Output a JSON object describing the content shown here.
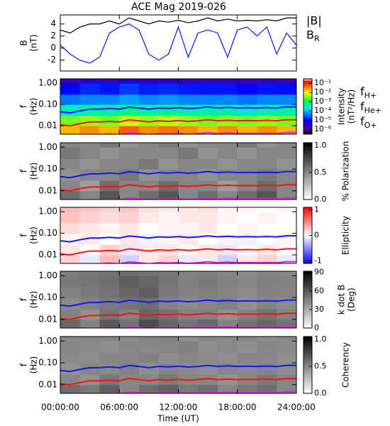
{
  "chart_data": [
    {
      "type": "line",
      "title": "ACE Mag 2019-026",
      "ylabel": [
        "B",
        "(nT)"
      ],
      "xlim": [
        0,
        24
      ],
      "x": [
        0,
        1,
        2,
        3,
        4,
        5,
        6,
        7,
        8,
        9,
        10,
        11,
        12,
        13,
        14,
        15,
        16,
        17,
        18,
        19,
        20,
        21,
        22,
        23,
        24
      ],
      "ylim": [
        -3.8,
        5.5
      ],
      "yticks": [
        -2,
        0,
        2,
        4
      ],
      "series": [
        {
          "name": "|B|",
          "color": "#000000",
          "values": [
            3.0,
            2.5,
            3.5,
            4.0,
            4.0,
            4.5,
            4.0,
            5.0,
            4.5,
            4.0,
            4.5,
            4.3,
            4.6,
            4.2,
            4.5,
            5.0,
            4.5,
            4.8,
            4.5,
            4.6,
            4.5,
            4.7,
            4.5,
            5.0,
            5.0
          ]
        },
        {
          "name": "B",
          "subscript": "R",
          "color": "#1010ff",
          "values": [
            0.5,
            -1.0,
            -2.0,
            -2.5,
            -1.5,
            2.5,
            3.5,
            4.0,
            3.0,
            -1.0,
            -2.0,
            -1.0,
            3.5,
            -1.5,
            2.5,
            3.0,
            2.5,
            -1.5,
            3.0,
            3.5,
            2.0,
            3.5,
            -1.0,
            2.5,
            0.5
          ]
        }
      ]
    },
    {
      "type": "heatmap",
      "ylabel": [
        "f",
        "(Hz)"
      ],
      "ylog": true,
      "ylim": [
        0.004,
        1.6
      ],
      "yticks": [
        {
          "value": 1,
          "label": "1.00"
        },
        {
          "value": 0.1,
          "label": "0.10"
        },
        {
          "value": 0.01,
          "label": "0.01"
        }
      ],
      "x_bins": [
        0,
        2,
        4,
        6,
        8,
        10,
        12,
        14,
        16,
        18,
        20,
        22,
        24
      ],
      "y_bins": [
        0.004,
        0.01,
        0.03,
        0.1,
        0.3,
        1,
        1.6
      ],
      "colormap": "rainbow",
      "zlog": true,
      "zlim": [
        3e-07,
        0.3
      ],
      "zticks": [
        {
          "value": 0.1,
          "label": "10⁻¹"
        },
        {
          "value": 0.01,
          "label": "10⁻²"
        },
        {
          "value": 0.001,
          "label": "10⁻³"
        },
        {
          "value": 0.0001,
          "label": "10⁻⁴"
        },
        {
          "value": 1e-05,
          "label": "10⁻⁵"
        },
        {
          "value": 1e-06,
          "label": "10⁻⁶"
        }
      ],
      "zlabel": [
        "Intensity",
        "(nT²/Hz)"
      ],
      "z": [
        [
          0.02,
          0.03,
          0.02,
          0.05,
          0.03,
          0.04,
          0.03,
          0.02,
          0.03,
          0.02,
          0.03,
          0.02
        ],
        [
          0.003,
          0.004,
          0.003,
          0.006,
          0.004,
          0.005,
          0.004,
          0.003,
          0.004,
          0.003,
          0.004,
          0.003
        ],
        [
          0.0003,
          0.0004,
          0.0004,
          0.0006,
          0.0004,
          0.0005,
          0.0004,
          0.0004,
          0.0004,
          0.0003,
          0.0004,
          0.0004
        ],
        [
          4e-05,
          5e-05,
          5e-05,
          7e-05,
          5e-05,
          6e-05,
          5e-05,
          5e-05,
          5e-05,
          4e-05,
          5e-05,
          5e-05
        ],
        [
          1e-05,
          1.5e-05,
          1.2e-05,
          2e-05,
          1.3e-05,
          1.5e-05,
          1.3e-05,
          1.2e-05,
          1.2e-05,
          1e-05,
          1.2e-05,
          1.1e-05
        ],
        [
          2e-06,
          3e-06,
          2.5e-06,
          4e-06,
          3e-06,
          3e-06,
          2.5e-06,
          2.5e-06,
          2.5e-06,
          2e-06,
          2.5e-06,
          2e-06
        ]
      ],
      "series": [
        {
          "name": "f",
          "subscript": "H+",
          "color": "#1515ff",
          "values": [
            0.045,
            0.04,
            0.05,
            0.06,
            0.06,
            0.065,
            0.06,
            0.075,
            0.068,
            0.06,
            0.068,
            0.065,
            0.07,
            0.064,
            0.068,
            0.076,
            0.068,
            0.073,
            0.068,
            0.07,
            0.068,
            0.071,
            0.068,
            0.076,
            0.076
          ]
        },
        {
          "name": "f",
          "subscript": "He+",
          "color": "#ff1010",
          "values": [
            0.011,
            0.01,
            0.0125,
            0.015,
            0.015,
            0.016,
            0.015,
            0.019,
            0.017,
            0.015,
            0.017,
            0.016,
            0.0175,
            0.016,
            0.017,
            0.019,
            0.017,
            0.018,
            0.017,
            0.0175,
            0.017,
            0.018,
            0.017,
            0.019,
            0.019
          ]
        },
        {
          "name": "f",
          "subscript": "O+",
          "color": "#e020e0",
          "values": [
            0.0028,
            0.0025,
            0.0031,
            0.0038,
            0.0038,
            0.0041,
            0.0038,
            0.0047,
            0.0043,
            0.0038,
            0.0043,
            0.0041,
            0.0044,
            0.004,
            0.0043,
            0.0048,
            0.0043,
            0.0046,
            0.0043,
            0.0044,
            0.0043,
            0.0044,
            0.0043,
            0.0048,
            0.0048
          ]
        }
      ]
    },
    {
      "type": "heatmap",
      "ylabel": [
        "f",
        "(Hz)"
      ],
      "ylog": true,
      "ylim": [
        0.004,
        1.6
      ],
      "yticks": [
        {
          "value": 1,
          "label": "1.00"
        },
        {
          "value": 0.1,
          "label": "0.10"
        },
        {
          "value": 0.01,
          "label": "0.01"
        }
      ],
      "x_bins": [
        0,
        2,
        4,
        6,
        8,
        10,
        12,
        14,
        16,
        18,
        20,
        22,
        24
      ],
      "y_bins": [
        0.004,
        0.01,
        0.03,
        0.1,
        0.3,
        1,
        1.6
      ],
      "colormap": "gray",
      "zlim": [
        0,
        1.05
      ],
      "zticks": [
        {
          "value": 1,
          "label": "1.0"
        },
        {
          "value": 0.5,
          "label": "0.5"
        },
        {
          "value": 0,
          "label": "0.0"
        }
      ],
      "zlabel": [
        "% Polarization"
      ],
      "z": [
        [
          0.6,
          0.5,
          0.7,
          0.5,
          0.6,
          0.7,
          0.5,
          0.6,
          0.5,
          0.6,
          0.7,
          0.5
        ],
        [
          0.5,
          0.4,
          0.6,
          0.5,
          0.5,
          0.6,
          0.5,
          0.5,
          0.4,
          0.5,
          0.6,
          0.5
        ],
        [
          0.45,
          0.5,
          0.5,
          0.55,
          0.45,
          0.5,
          0.5,
          0.45,
          0.5,
          0.5,
          0.55,
          0.5
        ],
        [
          0.5,
          0.45,
          0.5,
          0.5,
          0.55,
          0.45,
          0.5,
          0.5,
          0.45,
          0.5,
          0.5,
          0.45
        ],
        [
          0.55,
          0.5,
          0.45,
          0.5,
          0.5,
          0.5,
          0.55,
          0.45,
          0.5,
          0.45,
          0.5,
          0.5
        ],
        [
          0.5,
          0.5,
          0.55,
          0.45,
          0.5,
          0.55,
          0.45,
          0.5,
          0.5,
          0.55,
          0.45,
          0.5
        ]
      ]
    },
    {
      "type": "heatmap",
      "ylabel": [
        "f",
        "(Hz)"
      ],
      "ylog": true,
      "ylim": [
        0.004,
        1.6
      ],
      "yticks": [
        {
          "value": 1,
          "label": "1.00"
        },
        {
          "value": 0.1,
          "label": "0.10"
        },
        {
          "value": 0.01,
          "label": "0.01"
        }
      ],
      "x_bins": [
        0,
        2,
        4,
        6,
        8,
        10,
        12,
        14,
        16,
        18,
        20,
        22,
        24
      ],
      "y_bins": [
        0.004,
        0.01,
        0.03,
        0.1,
        0.3,
        1,
        1.6
      ],
      "colormap": "bwr",
      "zlim": [
        -1.1,
        1.1
      ],
      "zticks": [
        1,
        0,
        -1
      ],
      "zlabel": [
        "Ellipticity"
      ],
      "z": [
        [
          0.2,
          -0.1,
          0.3,
          -0.2,
          0.1,
          0.2,
          -0.1,
          0.1,
          -0.2,
          0.1,
          0.2,
          -0.1
        ],
        [
          0.1,
          0.0,
          0.2,
          -0.1,
          0.1,
          0.1,
          0.0,
          0.1,
          -0.1,
          0.0,
          0.1,
          0.0
        ],
        [
          0.05,
          0.1,
          0.0,
          0.1,
          -0.05,
          0.05,
          0.1,
          0.0,
          0.05,
          -0.05,
          0.0,
          0.05
        ],
        [
          0.15,
          0.1,
          0.05,
          0.1,
          0.0,
          0.05,
          0.05,
          0.1,
          0.0,
          0.05,
          0.0,
          0.0
        ],
        [
          0.25,
          0.2,
          0.15,
          0.2,
          0.1,
          0.05,
          0.1,
          0.1,
          0.05,
          0.0,
          0.05,
          0.0
        ],
        [
          0.3,
          0.25,
          0.2,
          0.25,
          0.15,
          0.1,
          0.1,
          0.15,
          0.05,
          0.05,
          0.0,
          0.05
        ]
      ]
    },
    {
      "type": "heatmap",
      "ylabel": [
        "f",
        "(Hz)"
      ],
      "ylog": true,
      "ylim": [
        0.004,
        1.6
      ],
      "yticks": [
        {
          "value": 1,
          "label": "1.00"
        },
        {
          "value": 0.1,
          "label": "0.10"
        },
        {
          "value": 0.01,
          "label": "0.01"
        }
      ],
      "x_bins": [
        0,
        2,
        4,
        6,
        8,
        10,
        12,
        14,
        16,
        18,
        20,
        22,
        24
      ],
      "y_bins": [
        0.004,
        0.01,
        0.03,
        0.1,
        0.3,
        1,
        1.6
      ],
      "colormap": "gray",
      "zlim": [
        0,
        92
      ],
      "zticks": [
        90,
        60,
        30,
        0
      ],
      "zlabel": [
        "k dot B",
        "(Deg)"
      ],
      "z": [
        [
          55,
          45,
          60,
          50,
          65,
          55,
          50,
          55,
          45,
          50,
          55,
          50
        ],
        [
          45,
          40,
          50,
          45,
          55,
          50,
          45,
          45,
          40,
          45,
          50,
          45
        ],
        [
          42,
          45,
          48,
          50,
          52,
          45,
          42,
          44,
          46,
          40,
          44,
          42
        ],
        [
          45,
          48,
          50,
          55,
          58,
          48,
          45,
          46,
          44,
          42,
          45,
          44
        ],
        [
          48,
          50,
          52,
          58,
          55,
          50,
          46,
          48,
          45,
          44,
          46,
          45
        ],
        [
          46,
          48,
          50,
          52,
          50,
          48,
          45,
          46,
          44,
          42,
          44,
          43
        ]
      ]
    },
    {
      "type": "heatmap",
      "ylabel": [
        "f",
        "(Hz)"
      ],
      "ylog": true,
      "ylim": [
        0.004,
        1.6
      ],
      "yticks": [
        {
          "value": 1,
          "label": "1.00"
        },
        {
          "value": 0.1,
          "label": "0.10"
        },
        {
          "value": 0.01,
          "label": "0.01"
        }
      ],
      "x_bins": [
        0,
        2,
        4,
        6,
        8,
        10,
        12,
        14,
        16,
        18,
        20,
        22,
        24
      ],
      "y_bins": [
        0.004,
        0.01,
        0.03,
        0.1,
        0.3,
        1,
        1.6
      ],
      "colormap": "gray",
      "zlim": [
        0,
        1.05
      ],
      "zticks": [
        {
          "value": 1,
          "label": "1.0"
        },
        {
          "value": 0.5,
          "label": "0.5"
        },
        {
          "value": 0,
          "label": "0.0"
        }
      ],
      "zlabel": [
        "Coherency"
      ],
      "xlabel": "Time (UT)",
      "xticks": [
        {
          "value": 0,
          "label": "00:00:00"
        },
        {
          "value": 6,
          "label": "06:00:00"
        },
        {
          "value": 12,
          "label": "12:00:00"
        },
        {
          "value": 18,
          "label": "18:00:00"
        },
        {
          "value": 24,
          "label": "24:00:00"
        }
      ],
      "z": [
        [
          0.6,
          0.55,
          0.65,
          0.5,
          0.6,
          0.65,
          0.55,
          0.6,
          0.5,
          0.55,
          0.6,
          0.5
        ],
        [
          0.5,
          0.45,
          0.55,
          0.5,
          0.5,
          0.55,
          0.5,
          0.5,
          0.45,
          0.5,
          0.55,
          0.5
        ],
        [
          0.45,
          0.5,
          0.48,
          0.52,
          0.46,
          0.5,
          0.48,
          0.46,
          0.5,
          0.48,
          0.5,
          0.47
        ],
        [
          0.48,
          0.46,
          0.5,
          0.5,
          0.52,
          0.47,
          0.5,
          0.48,
          0.46,
          0.5,
          0.49,
          0.46
        ],
        [
          0.5,
          0.48,
          0.47,
          0.5,
          0.49,
          0.5,
          0.52,
          0.47,
          0.49,
          0.46,
          0.5,
          0.48
        ],
        [
          0.49,
          0.5,
          0.5,
          0.47,
          0.5,
          0.51,
          0.46,
          0.5,
          0.49,
          0.5,
          0.47,
          0.49
        ]
      ]
    }
  ]
}
